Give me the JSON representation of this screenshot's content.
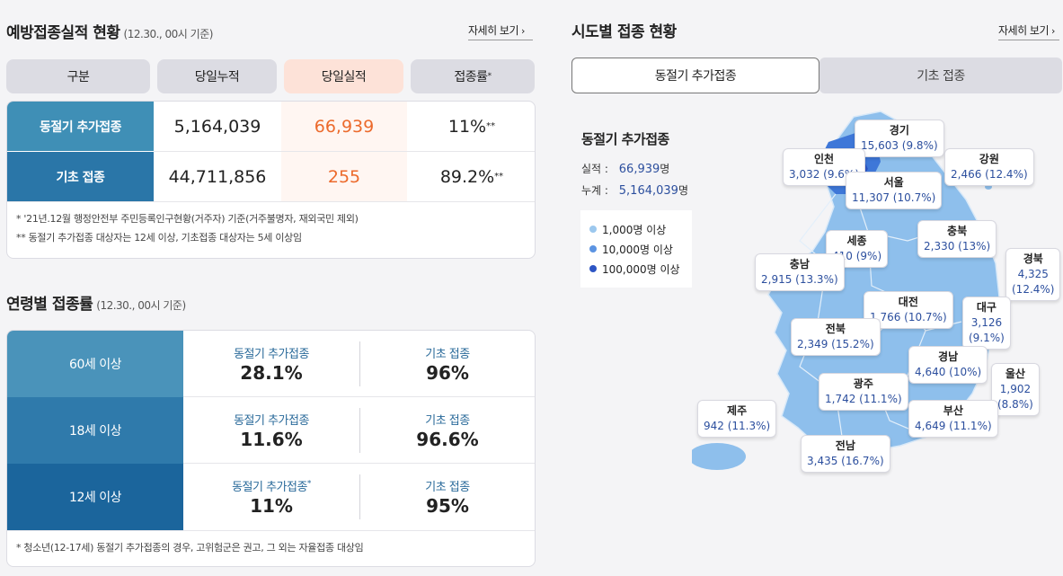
{
  "left": {
    "title": "예방접종실적 현황",
    "title_sub": "(12.30., 00시 기준)",
    "more": "자세히 보기",
    "headers": [
      "구분",
      "당일누적",
      "당일실적",
      "접종률"
    ],
    "header_sup": "*",
    "rows": [
      {
        "label": "동절기 추가접종",
        "cumulative": "5,164,039",
        "daily": "66,939",
        "rate": "11%",
        "rate_sup": "**",
        "color": "#3f8fb6"
      },
      {
        "label": "기초 접종",
        "cumulative": "44,711,856",
        "daily": "255",
        "rate": "89.2%",
        "rate_sup": "**",
        "color": "#2a76a8"
      }
    ],
    "notes": [
      "* '21년.12월 행정안전부 주민등록인구현황(거주자) 기준(거주불명자, 재외국민 제외)",
      "** 동절기 추가접종 대상자는 12세 이상, 기초접종 대상자는 5세 이상임"
    ]
  },
  "age": {
    "title": "연령별 접종률",
    "title_sub": "(12.30., 00시 기준)",
    "rows": [
      {
        "label": "60세 이상",
        "k1": "동절기 추가접종",
        "k1_sup": "",
        "v1": "28.1%",
        "k2": "기초 접종",
        "v2": "96%",
        "color": "#4a93ba"
      },
      {
        "label": "18세 이상",
        "k1": "동절기 추가접종",
        "k1_sup": "",
        "v1": "11.6%",
        "k2": "기초 접종",
        "v2": "96.6%",
        "color": "#2f7aab"
      },
      {
        "label": "12세 이상",
        "k1": "동절기 추가접종",
        "k1_sup": "*",
        "v1": "11%",
        "k2": "기초 접종",
        "v2": "95%",
        "color": "#1b659c"
      }
    ],
    "note": "* 청소년(12-17세) 동절기 추가접종의 경우, 고위험군은 권고, 그 외는 자율접종 대상임"
  },
  "right": {
    "title": "시도별 접종 현황",
    "more": "자세히 보기",
    "tabs": [
      "동절기 추가접종",
      "기초 접종"
    ],
    "summary": {
      "title": "동절기 추가접종",
      "daily_label": "실적 :",
      "daily_value": "66,939",
      "total_label": "누계 :",
      "total_value": "5,164,039",
      "unit": "명"
    },
    "legend": [
      {
        "label": "1,000명 이상",
        "color": "#9cc8ee"
      },
      {
        "label": "10,000명 이상",
        "color": "#5c94e2"
      },
      {
        "label": "100,000명 이상",
        "color": "#2d55c4"
      }
    ],
    "regions": [
      {
        "name": "경기",
        "value": "15,603 (9.8%)"
      },
      {
        "name": "인천",
        "value": "3,032 (9.6%)"
      },
      {
        "name": "강원",
        "value": "2,466 (12.4%)"
      },
      {
        "name": "서울",
        "value": "11,307 (10.7%)"
      },
      {
        "name": "충북",
        "value": "2,330 (13%)"
      },
      {
        "name": "세종",
        "value": "410 (9%)"
      },
      {
        "name": "경북",
        "value": "4,325",
        "value2": "(12.4%)"
      },
      {
        "name": "충남",
        "value": "2,915 (13.3%)"
      },
      {
        "name": "대전",
        "value": "1,766 (10.7%)"
      },
      {
        "name": "대구",
        "value": "3,126",
        "value2": "(9.1%)"
      },
      {
        "name": "전북",
        "value": "2,349 (15.2%)"
      },
      {
        "name": "경남",
        "value": "4,640 (10%)"
      },
      {
        "name": "울산",
        "value": "1,902",
        "value2": "(8.8%)"
      },
      {
        "name": "광주",
        "value": "1,742 (11.1%)"
      },
      {
        "name": "제주",
        "value": "942 (11.3%)"
      },
      {
        "name": "부산",
        "value": "4,649 (11.1%)"
      },
      {
        "name": "전남",
        "value": "3,435 (16.7%)"
      }
    ]
  }
}
